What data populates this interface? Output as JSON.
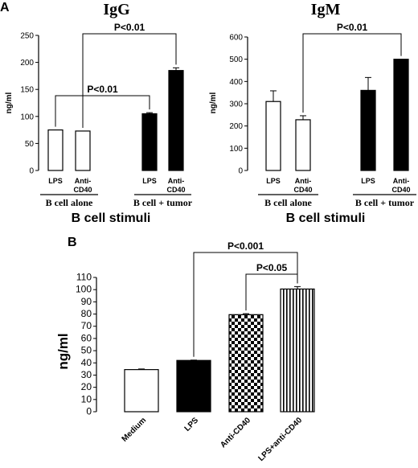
{
  "chart_data": [
    {
      "type": "bar",
      "panel_label": "A",
      "title": "IgG",
      "ylabel": "ng/ml",
      "xlabel": "B cell stimuli",
      "ylim": [
        0,
        250
      ],
      "yticks": [
        0,
        50,
        100,
        150,
        200,
        250
      ],
      "categories": [
        "LPS",
        "Anti-\nCD40",
        "LPS",
        "Anti-\nCD40"
      ],
      "values": [
        75,
        73,
        105,
        185
      ],
      "errors": [
        0,
        0,
        2,
        5
      ],
      "fills": [
        "white",
        "white",
        "black",
        "black"
      ],
      "groups": [
        {
          "label": "B cell alone",
          "indices": [
            0,
            1
          ]
        },
        {
          "label": "B cell + tumor",
          "indices": [
            2,
            3
          ]
        }
      ],
      "significance": [
        {
          "from": 0,
          "to": 2,
          "label": "P<0.01"
        },
        {
          "from": 1,
          "to": 3,
          "label": "P<0.01"
        }
      ]
    },
    {
      "type": "bar",
      "title": "IgM",
      "ylabel": "ng/ml",
      "xlabel": "B cell stimuli",
      "ylim": [
        0,
        600
      ],
      "yticks": [
        0,
        100,
        200,
        300,
        400,
        500,
        600
      ],
      "categories": [
        "LPS",
        "Anti-\nCD40",
        "LPS",
        "Anti-\nCD40"
      ],
      "values": [
        310,
        228,
        360,
        500
      ],
      "errors": [
        48,
        18,
        58,
        0
      ],
      "fills": [
        "white",
        "white",
        "black",
        "black"
      ],
      "groups": [
        {
          "label": "B cell alone",
          "indices": [
            0,
            1
          ]
        },
        {
          "label": "B cell + tumor",
          "indices": [
            2,
            3
          ]
        }
      ],
      "significance": [
        {
          "from": 1,
          "to": 3,
          "label": "P<0.01"
        }
      ]
    },
    {
      "type": "bar",
      "panel_label": "B",
      "ylabel": "ng/ml",
      "xlabel": "",
      "ylim": [
        0,
        110
      ],
      "yticks": [
        0,
        10,
        20,
        30,
        40,
        50,
        60,
        70,
        80,
        90,
        100,
        110
      ],
      "categories": [
        "Medium",
        "LPS",
        "Anti-CD40",
        "LPS+anti-CD40"
      ],
      "values": [
        34.5,
        42,
        79.5,
        100.5
      ],
      "errors": [
        0.5,
        0.3,
        0.8,
        2
      ],
      "fills": [
        "white",
        "black",
        "checker",
        "vstripe"
      ],
      "significance": [
        {
          "from": 1,
          "to": 3,
          "label": "P<0.001"
        },
        {
          "from": 2,
          "to": 3,
          "label": "P<0.05"
        }
      ]
    }
  ]
}
